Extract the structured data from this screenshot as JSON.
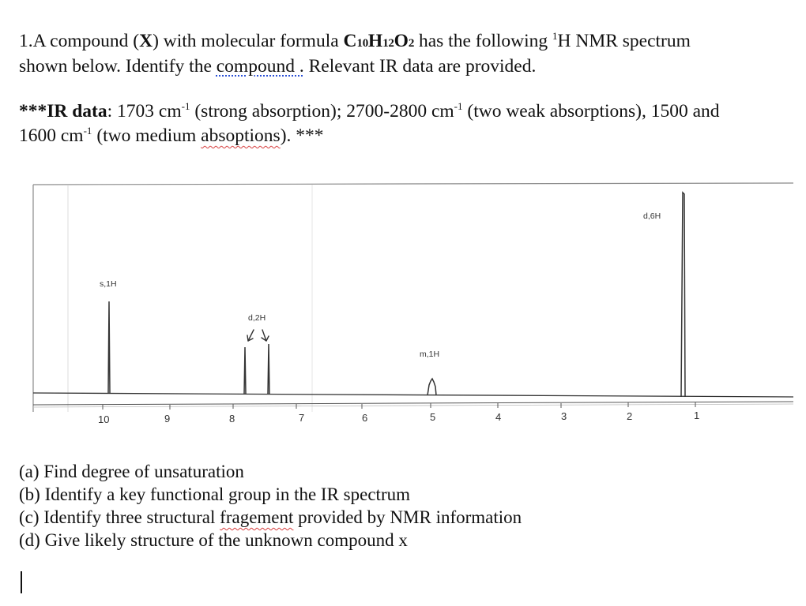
{
  "question": {
    "intro_a": "1.A compound (",
    "intro_x": "X",
    "intro_b": ") with molecular formula ",
    "formula": {
      "c": "C",
      "c_sub": "10",
      "h": "H",
      "h_sub": "12",
      "o": "O",
      "o_sub": "2"
    },
    "intro_c": " has the following ",
    "nmr_sup": "1",
    "nmr_rest": "H NMR spectrum",
    "line2_a": "shown below. Identify the ",
    "line2_link": "compound .",
    "line2_b": " Relevant IR data are provided."
  },
  "ir": {
    "stars_open": "***",
    "label": "IR data",
    "colon": ": 1703 cm",
    "sup1": "-1",
    "t1": " (strong absorption); 2700-2800 cm",
    "sup2": "-1",
    "t2": " (two weak absorptions), 1500 and",
    "t3": "1600 cm",
    "sup3": "-1",
    "t4": " (two medium ",
    "absoptions": "absoptions",
    "t5": "). ***"
  },
  "spectrum": {
    "peak_labels": [
      "s,1H",
      "d,2H",
      "m,1H",
      "d,6H"
    ],
    "axis_ticks": [
      "10",
      "9",
      "8",
      "7",
      "6",
      "5",
      "4",
      "3",
      "2",
      "1"
    ]
  },
  "parts": {
    "a": "(a) Find degree of unsaturation",
    "b": "(b) Identify a key functional group in the IR spectrum",
    "c_pre": "(c) Identify three structural ",
    "c_word": "fragement",
    "c_post": " provided by NMR information",
    "d": "(d) Give likely structure of the unknown compound x"
  },
  "colors": {
    "grammar_underline": "#2a4fd6",
    "spelling_underline": "#d63c3c"
  }
}
